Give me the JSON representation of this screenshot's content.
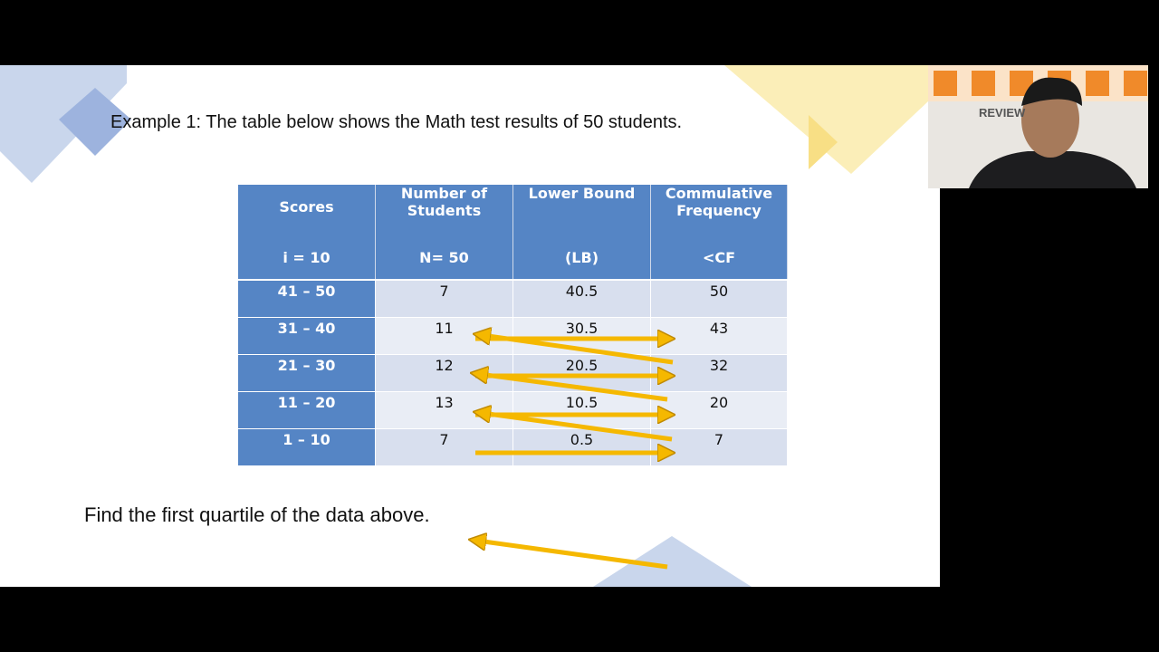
{
  "slide": {
    "title": "Example 1: The table below shows the Math test results of 50 students.",
    "question": "Find the first quartile of the data above."
  },
  "table": {
    "headers": [
      [
        "Scores",
        "i = 10"
      ],
      [
        "Number of Students",
        "N= 50"
      ],
      [
        "Lower Bound",
        "(LB)"
      ],
      [
        "Commulative Frequency",
        "<CF"
      ]
    ],
    "rows": [
      [
        "41 – 50",
        7,
        40.5,
        50
      ],
      [
        "31 – 40",
        11,
        30.5,
        43
      ],
      [
        "21 – 30",
        12,
        20.5,
        32
      ],
      [
        "11 – 20",
        13,
        10.5,
        20
      ],
      [
        "1 – 10",
        7,
        0.5,
        7
      ]
    ]
  },
  "webcam": {
    "label": "REVIEW"
  }
}
